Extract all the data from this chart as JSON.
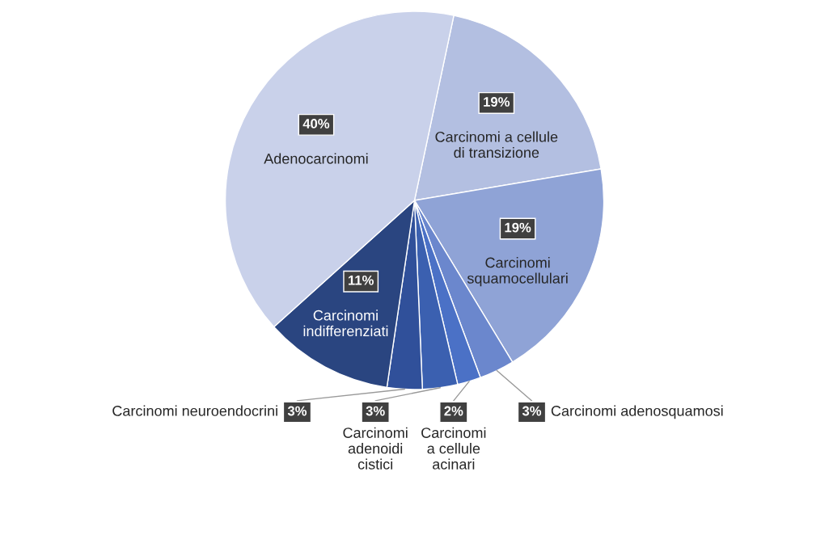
{
  "chart_data": {
    "type": "pie",
    "categories": [
      "Carcinomi a cellule\ndi transizione",
      "Carcinomi\nsquamocellulari",
      "Carcinomi adenosquamosi",
      "Carcinomi\na cellule\nacinari",
      "Carcinomi\nadenoidi\ncistici",
      "Carcinomi neuroendocrini",
      "Carcinomi\nindifferenziati",
      "Adenocarcinomi"
    ],
    "values": [
      19,
      19,
      3,
      2,
      3,
      3,
      11,
      40
    ],
    "value_labels": [
      "19%",
      "19%",
      "3%",
      "2%",
      "3%",
      "3%",
      "11%",
      "40%"
    ],
    "colors": [
      "#b3bfe1",
      "#8fa3d6",
      "#6b87cd",
      "#4b71c6",
      "#3b60b0",
      "#30509a",
      "#2a4580",
      "#c9d1ea"
    ]
  }
}
